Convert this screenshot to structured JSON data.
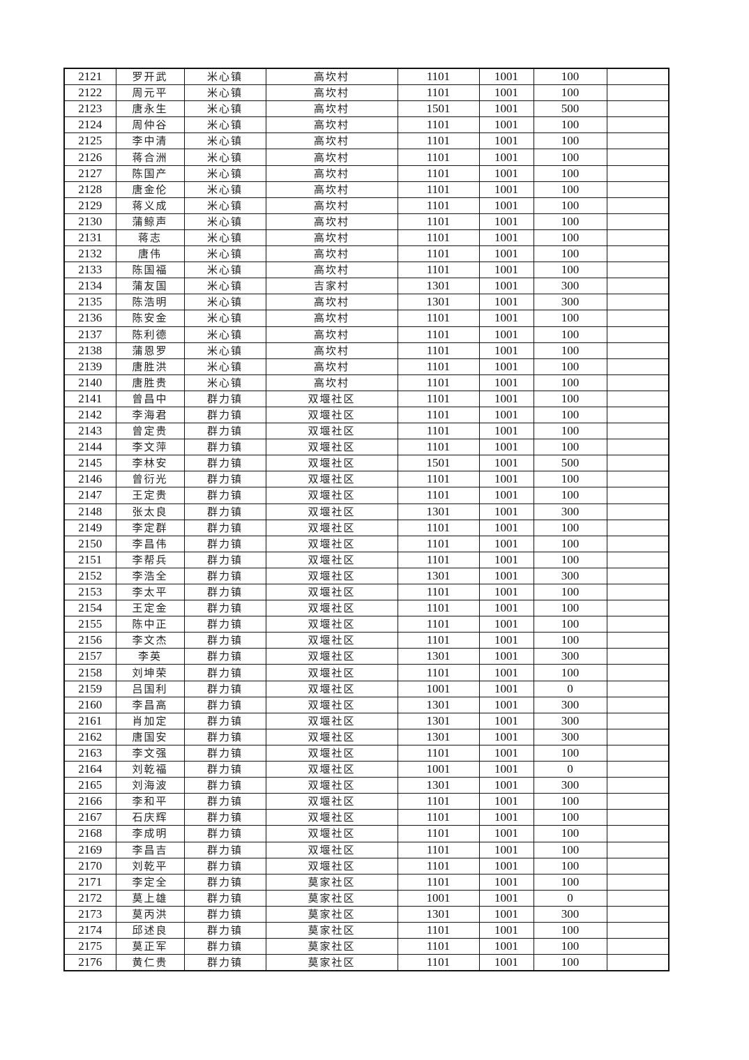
{
  "table": {
    "rows": [
      [
        "2121",
        "罗开武",
        "米心镇",
        "高坎村",
        "1101",
        "1001",
        "100",
        ""
      ],
      [
        "2122",
        "周元平",
        "米心镇",
        "高坎村",
        "1101",
        "1001",
        "100",
        ""
      ],
      [
        "2123",
        "唐永生",
        "米心镇",
        "高坎村",
        "1501",
        "1001",
        "500",
        ""
      ],
      [
        "2124",
        "周仲谷",
        "米心镇",
        "高坎村",
        "1101",
        "1001",
        "100",
        ""
      ],
      [
        "2125",
        "李中清",
        "米心镇",
        "高坎村",
        "1101",
        "1001",
        "100",
        ""
      ],
      [
        "2126",
        "蒋合洲",
        "米心镇",
        "高坎村",
        "1101",
        "1001",
        "100",
        ""
      ],
      [
        "2127",
        "陈国产",
        "米心镇",
        "高坎村",
        "1101",
        "1001",
        "100",
        ""
      ],
      [
        "2128",
        "唐金伦",
        "米心镇",
        "高坎村",
        "1101",
        "1001",
        "100",
        ""
      ],
      [
        "2129",
        "蒋义成",
        "米心镇",
        "高坎村",
        "1101",
        "1001",
        "100",
        ""
      ],
      [
        "2130",
        "蒲鲸声",
        "米心镇",
        "高坎村",
        "1101",
        "1001",
        "100",
        ""
      ],
      [
        "2131",
        "蒋志",
        "米心镇",
        "高坎村",
        "1101",
        "1001",
        "100",
        ""
      ],
      [
        "2132",
        "唐伟",
        "米心镇",
        "高坎村",
        "1101",
        "1001",
        "100",
        ""
      ],
      [
        "2133",
        "陈国福",
        "米心镇",
        "高坎村",
        "1101",
        "1001",
        "100",
        ""
      ],
      [
        "2134",
        "蒲友国",
        "米心镇",
        "吉家村",
        "1301",
        "1001",
        "300",
        ""
      ],
      [
        "2135",
        "陈浩明",
        "米心镇",
        "高坎村",
        "1301",
        "1001",
        "300",
        ""
      ],
      [
        "2136",
        "陈安金",
        "米心镇",
        "高坎村",
        "1101",
        "1001",
        "100",
        ""
      ],
      [
        "2137",
        "陈利德",
        "米心镇",
        "高坎村",
        "1101",
        "1001",
        "100",
        ""
      ],
      [
        "2138",
        "蒲恩罗",
        "米心镇",
        "高坎村",
        "1101",
        "1001",
        "100",
        ""
      ],
      [
        "2139",
        "唐胜洪",
        "米心镇",
        "高坎村",
        "1101",
        "1001",
        "100",
        ""
      ],
      [
        "2140",
        "唐胜贵",
        "米心镇",
        "高坎村",
        "1101",
        "1001",
        "100",
        ""
      ],
      [
        "2141",
        "曾昌中",
        "群力镇",
        "双堰社区",
        "1101",
        "1001",
        "100",
        ""
      ],
      [
        "2142",
        "李海君",
        "群力镇",
        "双堰社区",
        "1101",
        "1001",
        "100",
        ""
      ],
      [
        "2143",
        "曾定贵",
        "群力镇",
        "双堰社区",
        "1101",
        "1001",
        "100",
        ""
      ],
      [
        "2144",
        "李文萍",
        "群力镇",
        "双堰社区",
        "1101",
        "1001",
        "100",
        ""
      ],
      [
        "2145",
        "李林安",
        "群力镇",
        "双堰社区",
        "1501",
        "1001",
        "500",
        ""
      ],
      [
        "2146",
        "曾衍光",
        "群力镇",
        "双堰社区",
        "1101",
        "1001",
        "100",
        ""
      ],
      [
        "2147",
        "王定贵",
        "群力镇",
        "双堰社区",
        "1101",
        "1001",
        "100",
        ""
      ],
      [
        "2148",
        "张太良",
        "群力镇",
        "双堰社区",
        "1301",
        "1001",
        "300",
        ""
      ],
      [
        "2149",
        "李定群",
        "群力镇",
        "双堰社区",
        "1101",
        "1001",
        "100",
        ""
      ],
      [
        "2150",
        "李昌伟",
        "群力镇",
        "双堰社区",
        "1101",
        "1001",
        "100",
        ""
      ],
      [
        "2151",
        "李帮兵",
        "群力镇",
        "双堰社区",
        "1101",
        "1001",
        "100",
        ""
      ],
      [
        "2152",
        "李浩全",
        "群力镇",
        "双堰社区",
        "1301",
        "1001",
        "300",
        ""
      ],
      [
        "2153",
        "李太平",
        "群力镇",
        "双堰社区",
        "1101",
        "1001",
        "100",
        ""
      ],
      [
        "2154",
        "王定金",
        "群力镇",
        "双堰社区",
        "1101",
        "1001",
        "100",
        ""
      ],
      [
        "2155",
        "陈中正",
        "群力镇",
        "双堰社区",
        "1101",
        "1001",
        "100",
        ""
      ],
      [
        "2156",
        "李文杰",
        "群力镇",
        "双堰社区",
        "1101",
        "1001",
        "100",
        ""
      ],
      [
        "2157",
        "李英",
        "群力镇",
        "双堰社区",
        "1301",
        "1001",
        "300",
        ""
      ],
      [
        "2158",
        "刘坤荣",
        "群力镇",
        "双堰社区",
        "1101",
        "1001",
        "100",
        ""
      ],
      [
        "2159",
        "吕国利",
        "群力镇",
        "双堰社区",
        "1001",
        "1001",
        "0",
        ""
      ],
      [
        "2160",
        "李昌高",
        "群力镇",
        "双堰社区",
        "1301",
        "1001",
        "300",
        ""
      ],
      [
        "2161",
        "肖加定",
        "群力镇",
        "双堰社区",
        "1301",
        "1001",
        "300",
        ""
      ],
      [
        "2162",
        "唐国安",
        "群力镇",
        "双堰社区",
        "1301",
        "1001",
        "300",
        ""
      ],
      [
        "2163",
        "李文强",
        "群力镇",
        "双堰社区",
        "1101",
        "1001",
        "100",
        ""
      ],
      [
        "2164",
        "刘乾福",
        "群力镇",
        "双堰社区",
        "1001",
        "1001",
        "0",
        ""
      ],
      [
        "2165",
        "刘海波",
        "群力镇",
        "双堰社区",
        "1301",
        "1001",
        "300",
        ""
      ],
      [
        "2166",
        "李和平",
        "群力镇",
        "双堰社区",
        "1101",
        "1001",
        "100",
        ""
      ],
      [
        "2167",
        "石庆辉",
        "群力镇",
        "双堰社区",
        "1101",
        "1001",
        "100",
        ""
      ],
      [
        "2168",
        "李成明",
        "群力镇",
        "双堰社区",
        "1101",
        "1001",
        "100",
        ""
      ],
      [
        "2169",
        "李昌吉",
        "群力镇",
        "双堰社区",
        "1101",
        "1001",
        "100",
        ""
      ],
      [
        "2170",
        "刘乾平",
        "群力镇",
        "双堰社区",
        "1101",
        "1001",
        "100",
        ""
      ],
      [
        "2171",
        "李定全",
        "群力镇",
        "莫家社区",
        "1101",
        "1001",
        "100",
        ""
      ],
      [
        "2172",
        "莫上雄",
        "群力镇",
        "莫家社区",
        "1001",
        "1001",
        "0",
        ""
      ],
      [
        "2173",
        "莫丙洪",
        "群力镇",
        "莫家社区",
        "1301",
        "1001",
        "300",
        ""
      ],
      [
        "2174",
        "邱述良",
        "群力镇",
        "莫家社区",
        "1101",
        "1001",
        "100",
        ""
      ],
      [
        "2175",
        "莫正军",
        "群力镇",
        "莫家社区",
        "1101",
        "1001",
        "100",
        ""
      ],
      [
        "2176",
        "黄仁贵",
        "群力镇",
        "莫家社区",
        "1101",
        "1001",
        "100",
        ""
      ]
    ]
  }
}
